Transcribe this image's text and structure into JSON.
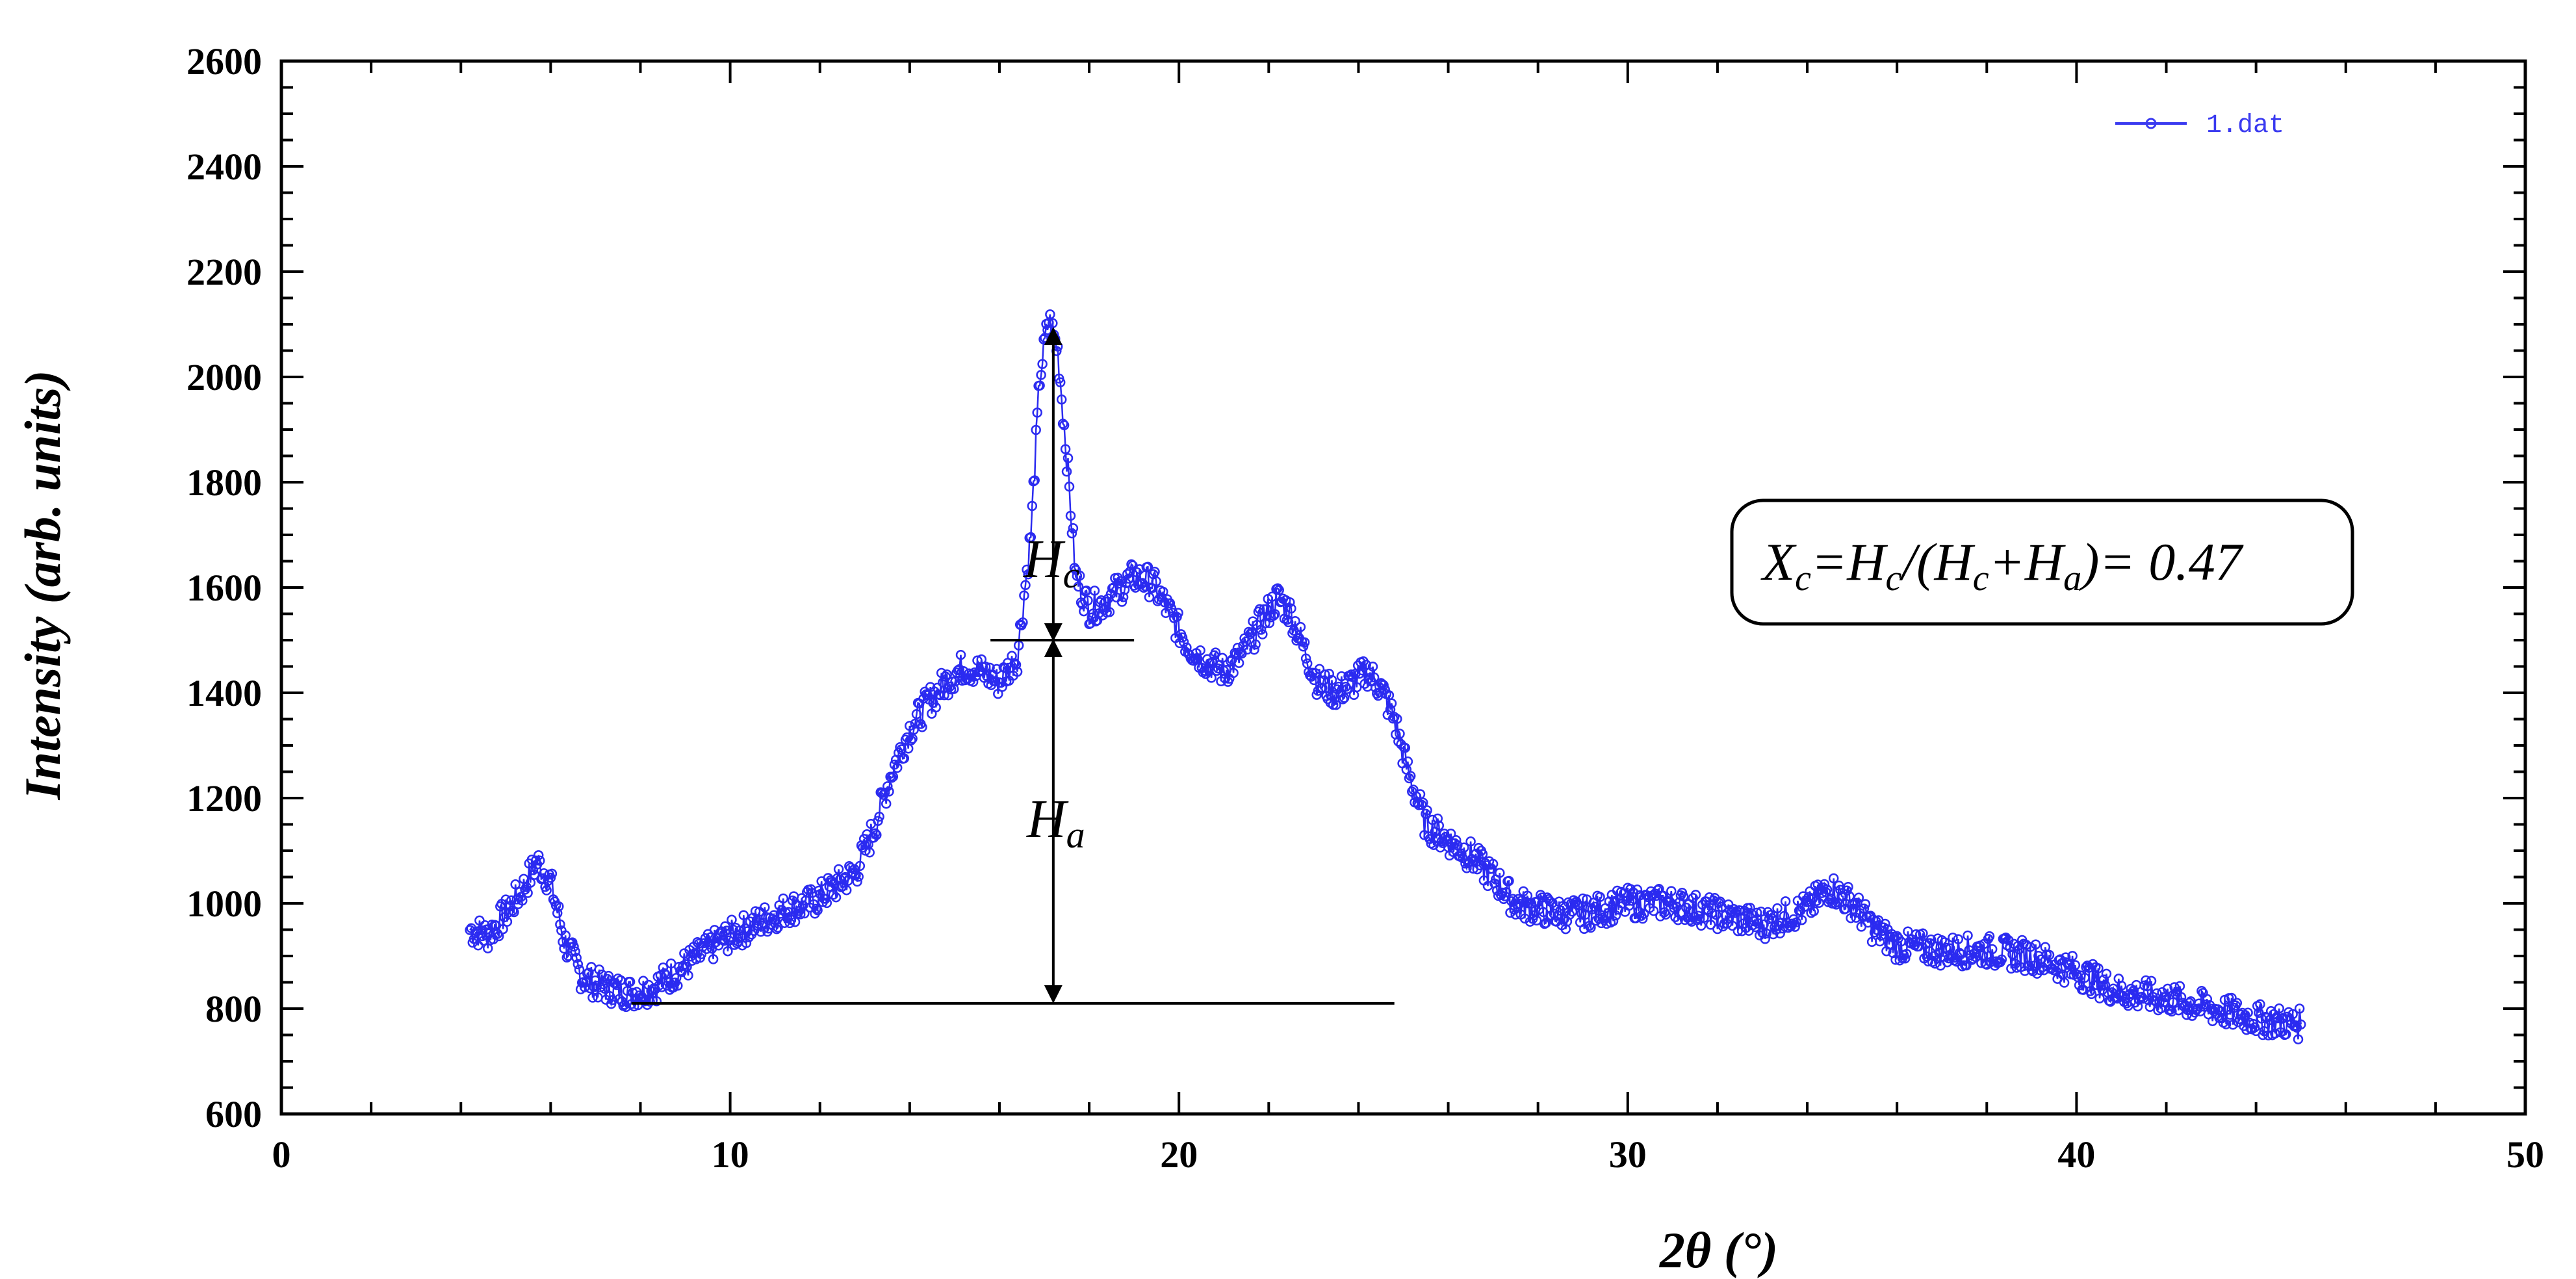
{
  "chart_data": {
    "type": "scatter",
    "title": "",
    "xlabel": "2θ (°)",
    "ylabel": "Intensity (arb. units)",
    "xlim": [
      0,
      50
    ],
    "ylim": [
      600,
      2600
    ],
    "x_ticks": [
      0,
      10,
      20,
      30,
      40,
      50
    ],
    "y_ticks": [
      600,
      800,
      1000,
      1200,
      1400,
      1600,
      1800,
      2000,
      2200,
      2400,
      2600
    ],
    "x_tick_labels": [
      "0",
      "10",
      "20",
      "30",
      "40",
      "50"
    ],
    "y_tick_labels": [
      "600",
      "800",
      "1000",
      "1200",
      "1400",
      "1600",
      "1800",
      "2000",
      "2200",
      "2400",
      "2600"
    ],
    "legend": {
      "label": "1.dat",
      "placement": "top-right"
    },
    "series": [
      {
        "name": "1.dat",
        "color": "#2b2bf0",
        "x": [
          4.2,
          4.6,
          5.0,
          5.4,
          5.7,
          6.0,
          6.3,
          6.7,
          7.2,
          7.8,
          8.3,
          8.8,
          9.3,
          9.8,
          10.3,
          10.8,
          11.3,
          11.8,
          12.3,
          12.8,
          13.2,
          13.6,
          14.0,
          14.4,
          14.8,
          15.2,
          15.6,
          16.0,
          16.4,
          16.7,
          16.9,
          17.1,
          17.3,
          17.5,
          17.7,
          18.0,
          18.3,
          18.7,
          19.0,
          19.4,
          19.8,
          20.2,
          20.6,
          21.0,
          21.4,
          21.8,
          22.2,
          22.5,
          22.8,
          23.1,
          23.5,
          23.9,
          24.2,
          24.5,
          24.8,
          25.1,
          25.5,
          26.0,
          26.5,
          27.0,
          27.5,
          28.0,
          28.5,
          29.0,
          29.5,
          30.0,
          31.0,
          32.0,
          33.0,
          34.0,
          34.5,
          35.0,
          35.5,
          36.0,
          37.0,
          38.0,
          39.0,
          40.0,
          41.0,
          42.0,
          43.0,
          44.0,
          45.0
        ],
        "values": [
          950,
          940,
          980,
          1030,
          1080,
          1040,
          930,
          860,
          840,
          830,
          840,
          870,
          900,
          930,
          950,
          970,
          990,
          1000,
          1030,
          1060,
          1140,
          1250,
          1330,
          1380,
          1420,
          1450,
          1440,
          1420,
          1470,
          1700,
          2000,
          2110,
          2050,
          1850,
          1620,
          1560,
          1570,
          1600,
          1620,
          1610,
          1550,
          1490,
          1460,
          1440,
          1470,
          1530,
          1580,
          1550,
          1480,
          1420,
          1400,
          1420,
          1440,
          1410,
          1350,
          1250,
          1150,
          1120,
          1090,
          1050,
          1000,
          990,
          980,
          980,
          990,
          1000,
          1000,
          980,
          960,
          990,
          1030,
          1000,
          950,
          920,
          910,
          910,
          900,
          870,
          830,
          820,
          800,
          780,
          770
        ]
      }
    ],
    "annotations": {
      "hc_label": "H",
      "hc_sub": "c",
      "ha_label": "H",
      "ha_sub": "a",
      "arrows": {
        "peak_x": 17.2,
        "peak_y": 2100,
        "mid_y": 1500,
        "baseline_y": 810,
        "mid_line_x": [
          15.8,
          19.0
        ],
        "baseline_x": [
          7.8,
          24.8
        ]
      },
      "formula": {
        "x": "X",
        "x_sub": "c",
        "eq1": "=H",
        "eq1_sub": "c",
        "mid": "/(H",
        "mid_sub": "c",
        "plus": "+H",
        "plus_sub": "a",
        "tail": ")= 0.47"
      }
    }
  }
}
